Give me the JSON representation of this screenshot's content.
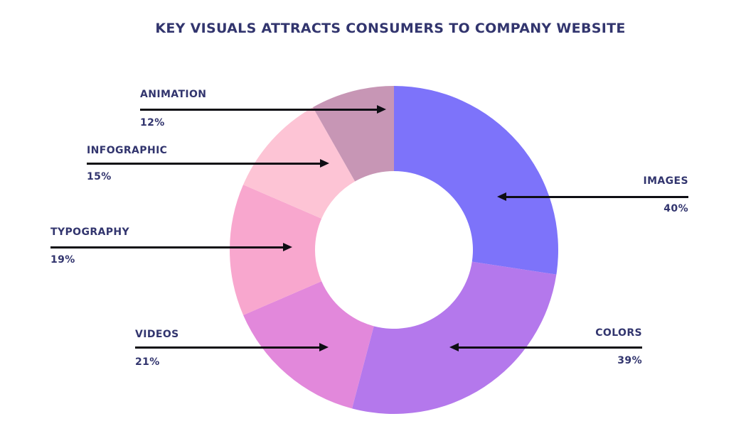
{
  "title": "KEY VISUALS ATTRACTS CONSUMERS TO COMPANY WEBSITE",
  "chart_data": {
    "type": "pie",
    "subtype": "donut",
    "title": "KEY VISUALS ATTRACTS CONSUMERS TO COMPANY WEBSITE",
    "start_angle_deg": 0,
    "direction": "clockwise",
    "inner_radius_ratio": 0.48,
    "legend_position": "callouts",
    "grid": false,
    "slices": [
      {
        "label": "IMAGES",
        "value": 40,
        "display": "40%",
        "color": "#7d73fa"
      },
      {
        "label": "COLORS",
        "value": 39,
        "display": "39%",
        "color": "#b478ec"
      },
      {
        "label": "VIDEOS",
        "value": 21,
        "display": "21%",
        "color": "#e288db"
      },
      {
        "label": "TYPOGRAPHY",
        "value": 19,
        "display": "19%",
        "color": "#f8a7ce"
      },
      {
        "label": "INFOGRAPHIC",
        "value": 15,
        "display": "15%",
        "color": "#fdc4d5"
      },
      {
        "label": "ANIMATION",
        "value": 12,
        "display": "12%",
        "color": "#c796b5"
      }
    ]
  },
  "colors": {
    "text": "#32356e",
    "arrow": "#0e0e14",
    "background": "#ffffff"
  }
}
